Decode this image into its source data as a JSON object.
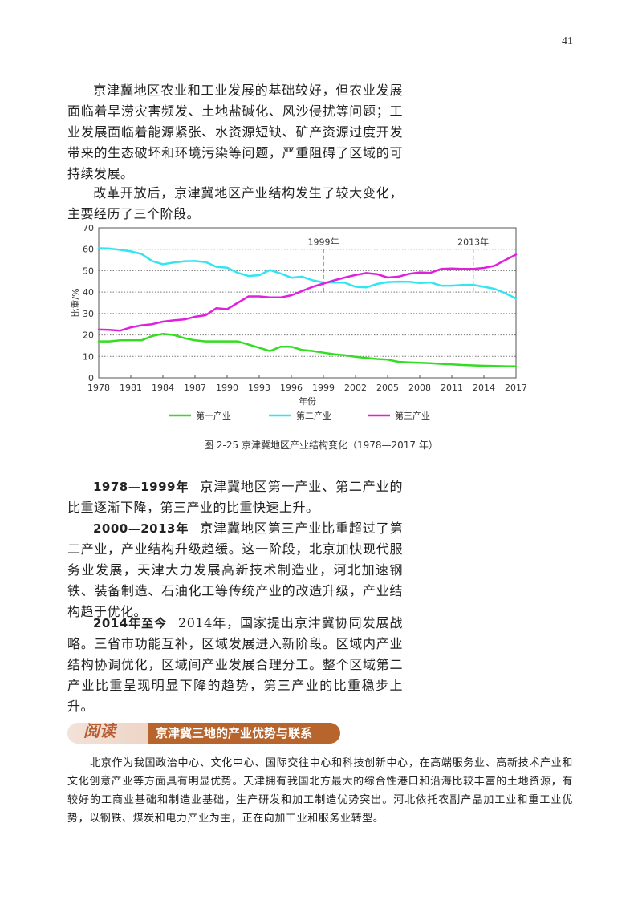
{
  "page": {
    "number": "41"
  },
  "paragraphs": {
    "p1": "京津冀地区农业和工业发展的基础较好，但农业发展面临着旱涝灾害频发、土地盐碱化、风沙侵扰等问题；工业发展面临着能源紧张、水资源短缺、矿产资源过度开发带来的生态破坏和环境污染等问题，严重阻碍了区域的可持续发展。",
    "p2": "改革开放后，京津冀地区产业结构发生了较大变化，主要经历了三个阶段。"
  },
  "stages": [
    {
      "lead": "1978—1999年",
      "text": "京津冀地区第一产业、第二产业的比重逐渐下降，第三产业的比重快速上升。"
    },
    {
      "lead": "2000—2013年",
      "text": "京津冀地区第三产业比重超过了第二产业，产业结构升级趋缓。这一阶段，北京加快现代服务业发展，天津大力发展高新技术制造业，河北加速钢铁、装备制造、石油化工等传统产业的改造升级，产业结构趋于优化。"
    },
    {
      "lead": "2014年至今",
      "text": "2014年，国家提出京津冀协同发展战略。三省市功能互补，区域发展进入新阶段。区域内产业结构协调优化，区域间产业发展合理分工。整个区域第二产业比重呈现明显下降的趋势，第三产业的比重稳步上升。"
    }
  ],
  "figure": {
    "caption": "图 2-25   京津冀地区产业结构变化（1978—2017 年）"
  },
  "chart_data": {
    "type": "line",
    "title": "京津冀地区产业结构变化（1978—2017 年）",
    "xlabel": "年份",
    "ylabel": "比重/%",
    "ylim": [
      0,
      70
    ],
    "xlim": [
      1978,
      2017
    ],
    "yticks": [
      0,
      10,
      20,
      30,
      40,
      50,
      60,
      70
    ],
    "xticks": [
      1978,
      1981,
      1984,
      1987,
      1990,
      1993,
      1996,
      1999,
      2002,
      2005,
      2008,
      2011,
      2014,
      2017
    ],
    "grid": "horizontal dotted",
    "legend_position": "bottom",
    "annotations": [
      {
        "x": 1999,
        "label": "1999年",
        "style": "dashed vertical",
        "y_range": [
          40,
          60
        ]
      },
      {
        "x": 2013,
        "label": "2013年",
        "style": "dashed vertical",
        "y_range": [
          40,
          60
        ]
      }
    ],
    "x": [
      1978,
      1979,
      1980,
      1981,
      1982,
      1983,
      1984,
      1985,
      1986,
      1987,
      1988,
      1989,
      1990,
      1991,
      1992,
      1993,
      1994,
      1995,
      1996,
      1997,
      1998,
      1999,
      2000,
      2001,
      2002,
      2003,
      2004,
      2005,
      2006,
      2007,
      2008,
      2009,
      2010,
      2011,
      2012,
      2013,
      2014,
      2015,
      2016,
      2017
    ],
    "series": [
      {
        "name": "第一产业",
        "color": "#33dd22",
        "values": [
          17,
          17,
          17.5,
          17.5,
          17.5,
          19.5,
          20.5,
          20,
          18.5,
          17.5,
          17,
          17,
          17,
          17,
          15.5,
          14,
          12.5,
          14.5,
          14.5,
          13,
          12.5,
          11.7,
          11,
          10.5,
          9.8,
          9.3,
          8.8,
          8.5,
          7.5,
          7.2,
          7,
          6.8,
          6.5,
          6.3,
          6,
          5.8,
          5.6,
          5.5,
          5.4,
          5.3
        ]
      },
      {
        "name": "第二产业",
        "color": "#33e5f0",
        "values": [
          60.5,
          60.3,
          59.7,
          59,
          57.8,
          54.5,
          53,
          53.8,
          54.4,
          54.5,
          54,
          51.8,
          51.4,
          49,
          47.5,
          47.9,
          50.3,
          48.7,
          46.7,
          47.2,
          45.5,
          44.5,
          44.5,
          44.4,
          42.5,
          42.2,
          43.8,
          44.7,
          44.9,
          44.8,
          44.3,
          44.5,
          43,
          43,
          43.3,
          43.4,
          42.5,
          41.5,
          39.5,
          37
        ]
      },
      {
        "name": "第三产业",
        "color": "#e020dd",
        "values": [
          22.5,
          22.4,
          22,
          23.5,
          24.5,
          25,
          26.2,
          26.8,
          27.2,
          28.5,
          29.2,
          32.5,
          32,
          35,
          38,
          38,
          37.5,
          37.5,
          38.5,
          40.5,
          42.5,
          44,
          45.5,
          46.8,
          48,
          48.9,
          48.4,
          46.8,
          47.2,
          48.5,
          49.2,
          49,
          50.8,
          51,
          50.8,
          50.8,
          51.3,
          52.3,
          55,
          57.5
        ]
      }
    ]
  },
  "legend": [
    "第一产业",
    "第二产业",
    "第三产业"
  ],
  "reading": {
    "tag": "阅读",
    "title": "京津冀三地的产业优势与联系",
    "body": "北京作为我国政治中心、文化中心、国际交往中心和科技创新中心，在高端服务业、高新技术产业和文化创意产业等方面具有明显优势。天津拥有我国北方最大的综合性港口和沿海比较丰富的土地资源，有较好的工商业基础和制造业基础，生产研发和加工制造优势突出。河北依托农副产品加工业和重工业优势，以钢铁、煤炭和电力产业为主，正在向加工业和服务业转型。"
  }
}
